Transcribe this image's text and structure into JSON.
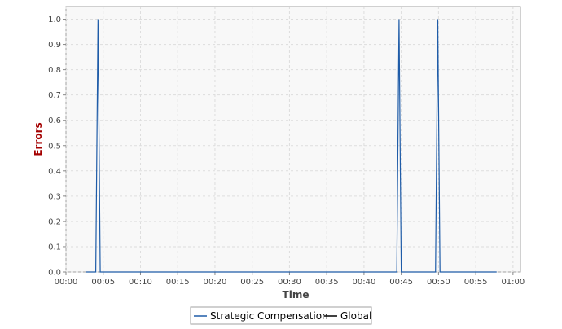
{
  "chart_data": {
    "type": "line",
    "title": "",
    "xlabel": "Time",
    "ylabel": "Errors",
    "x_unit": "minutes",
    "xlim": [
      0,
      61
    ],
    "ylim": [
      0,
      1.05
    ],
    "x_ticks": [
      {
        "value": 0,
        "label": "00:00"
      },
      {
        "value": 5,
        "label": "00:05"
      },
      {
        "value": 10,
        "label": "00:10"
      },
      {
        "value": 15,
        "label": "00:15"
      },
      {
        "value": 20,
        "label": "00:20"
      },
      {
        "value": 25,
        "label": "00:25"
      },
      {
        "value": 30,
        "label": "00:30"
      },
      {
        "value": 35,
        "label": "00:35"
      },
      {
        "value": 40,
        "label": "00:40"
      },
      {
        "value": 45,
        "label": "00:45"
      },
      {
        "value": 50,
        "label": "00:50"
      },
      {
        "value": 55,
        "label": "00:55"
      },
      {
        "value": 60,
        "label": "01:00"
      }
    ],
    "y_ticks": [
      {
        "value": 0.0,
        "label": "0.0"
      },
      {
        "value": 0.1,
        "label": "0.1"
      },
      {
        "value": 0.2,
        "label": "0.2"
      },
      {
        "value": 0.3,
        "label": "0.3"
      },
      {
        "value": 0.4,
        "label": "0.4"
      },
      {
        "value": 0.5,
        "label": "0.5"
      },
      {
        "value": 0.6,
        "label": "0.6"
      },
      {
        "value": 0.7,
        "label": "0.7"
      },
      {
        "value": 0.8,
        "label": "0.8"
      },
      {
        "value": 0.9,
        "label": "0.9"
      },
      {
        "value": 1.0,
        "label": "1.0"
      }
    ],
    "grid": true,
    "legend_position": "bottom-center",
    "series": [
      {
        "name": "Strategic Compensation",
        "color": "#1f5ca8",
        "points": [
          [
            2.7,
            0
          ],
          [
            4.0,
            0
          ],
          [
            4.3,
            1
          ],
          [
            4.6,
            0
          ],
          [
            44.4,
            0
          ],
          [
            44.7,
            1
          ],
          [
            45.0,
            0
          ],
          [
            49.6,
            0
          ],
          [
            49.9,
            1
          ],
          [
            50.2,
            0
          ],
          [
            57.8,
            0
          ]
        ]
      },
      {
        "name": "Global",
        "color": "#000000",
        "points": []
      }
    ],
    "colors": {
      "plot_background": "#f8f8f8",
      "grid": "#dddddd",
      "frame": "#a0a0a0"
    }
  }
}
